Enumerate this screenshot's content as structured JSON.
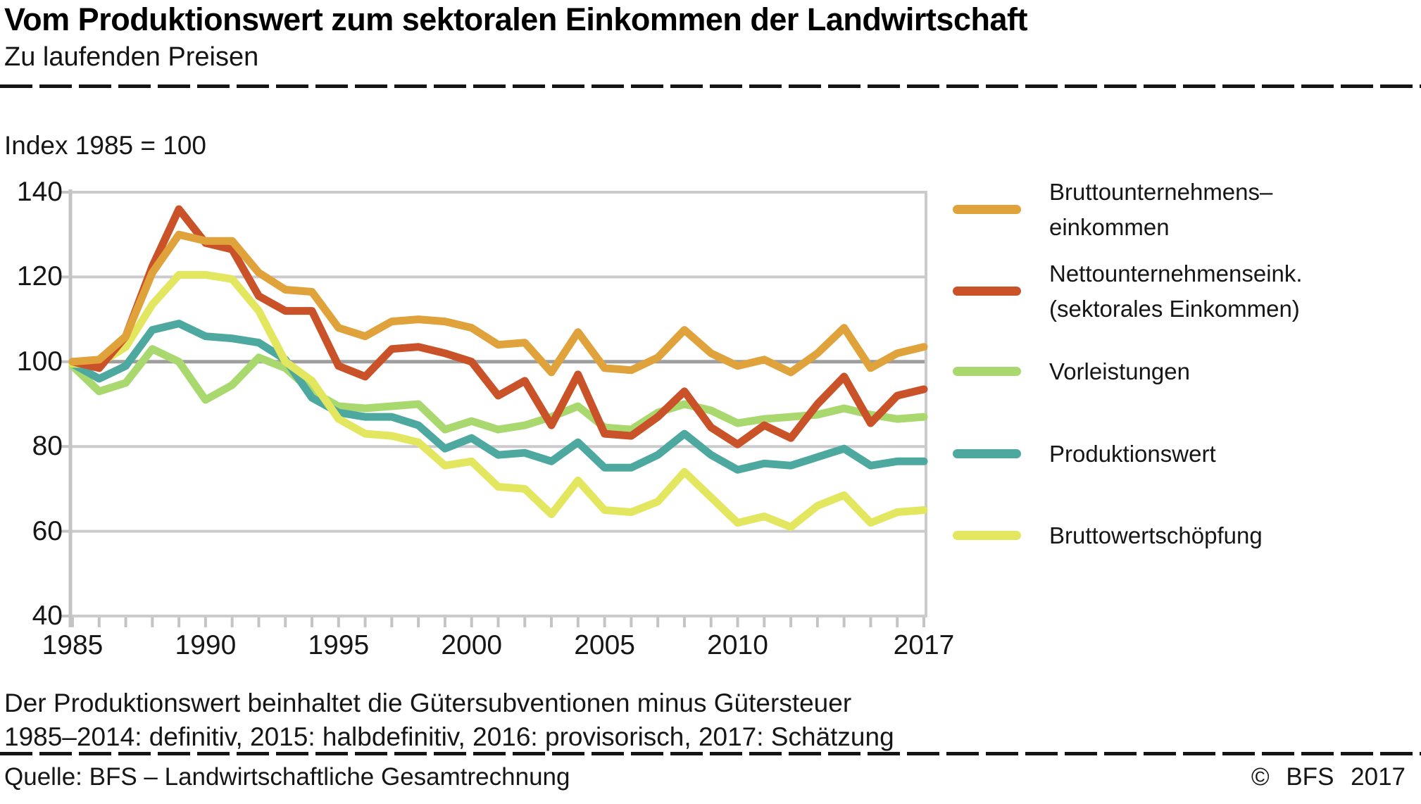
{
  "header": {
    "title": "Vom Produktionswert zum sektoralen Einkommen der Landwirtschaft",
    "subtitle": "Zu laufenden Preisen"
  },
  "chart": {
    "index_label": "Index 1985 = 100"
  },
  "footer": {
    "note1": "Der Produktionswert beinhaltet die Gütersubventionen minus Gütersteuer",
    "note2": "1985–2014: definitiv, 2015: halbdefinitiv, 2016: provisorisch, 2017: Schätzung",
    "source": "Quelle: BFS – Landwirtschaftliche Gesamtrechnung",
    "copyright": "© BFS 2017"
  },
  "colors": {
    "grid": "#CBCBCB",
    "grid_reference": "#9E9E9E",
    "axis": "#C4C4C4",
    "text": "#161616"
  },
  "chart_data": {
    "type": "line",
    "title": "Vom Produktionswert zum sektoralen Einkommen der Landwirtschaft",
    "subtitle": "Zu laufenden Preisen",
    "index_note": "Index 1985 = 100",
    "xlabel": "",
    "ylabel": "Index 1985 = 100",
    "ylim": [
      40,
      140
    ],
    "yticks": [
      140,
      120,
      100,
      80,
      60,
      40
    ],
    "reference_line": 100,
    "grid": true,
    "legend_position": "right",
    "x": [
      1985,
      1986,
      1987,
      1988,
      1989,
      1990,
      1991,
      1992,
      1993,
      1994,
      1995,
      1996,
      1997,
      1998,
      1999,
      2000,
      2001,
      2002,
      2003,
      2004,
      2005,
      2006,
      2007,
      2008,
      2009,
      2010,
      2011,
      2012,
      2013,
      2014,
      2015,
      2016,
      2017
    ],
    "x_tick_labels": [
      "1985",
      "1990",
      "1995",
      "2000",
      "2005",
      "2010",
      "2017"
    ],
    "x_tick_years": [
      1985,
      1990,
      1995,
      2000,
      2005,
      2010,
      2017
    ],
    "series": [
      {
        "key": "bruttounternehmenseinkommen",
        "name": "Bruttounternehmenseinkommen",
        "legend_lines": [
          "Bruttounternehmens–",
          "einkommen"
        ],
        "color": "#E0A23A",
        "values": [
          100,
          100.5,
          106,
          121,
          130,
          128.5,
          128.5,
          121,
          117,
          116.5,
          108,
          106,
          109.5,
          110,
          109.5,
          108,
          104,
          104.5,
          97.5,
          107,
          98.5,
          98,
          101,
          107.5,
          102,
          99,
          100.5,
          97.5,
          102,
          108,
          98.5,
          102,
          103.5
        ]
      },
      {
        "key": "nettounternehmenseinkommen",
        "name": "Nettounternehmenseink. (sektorales Einkommen)",
        "legend_lines": [
          "Nettounternehmenseink.",
          "(sektorales Einkommen)"
        ],
        "color": "#CA5229",
        "values": [
          100,
          98.5,
          106,
          122.5,
          136,
          128,
          126.5,
          115.5,
          112,
          112,
          99,
          96.5,
          103,
          103.5,
          102,
          100,
          92,
          95.5,
          85,
          97,
          83,
          82.5,
          87,
          93,
          84.5,
          80.5,
          85,
          82,
          90,
          96.5,
          85.5,
          92,
          93.5
        ]
      },
      {
        "key": "vorleistungen",
        "name": "Vorleistungen",
        "legend_lines": [
          "Vorleistungen"
        ],
        "color": "#A9D96E",
        "values": [
          99,
          93,
          95,
          103,
          100,
          91,
          94.5,
          101,
          98.5,
          93,
          89.5,
          89,
          89.5,
          90,
          84,
          86,
          84,
          85,
          87,
          89.5,
          84.5,
          84,
          88,
          90,
          88.5,
          85.5,
          86.5,
          87,
          87.5,
          89,
          87.5,
          86.5,
          87
        ]
      },
      {
        "key": "produktionswert",
        "name": "Produktionswert",
        "legend_lines": [
          "Produktionswert"
        ],
        "color": "#4DA9A0",
        "values": [
          99.5,
          96,
          99,
          107.5,
          109,
          106,
          105.5,
          104.5,
          100.5,
          91.5,
          88,
          87,
          87,
          85,
          79.5,
          82,
          78,
          78.5,
          76.5,
          81,
          75,
          75,
          78,
          83,
          78,
          74.5,
          76,
          75.5,
          77.5,
          79.5,
          75.5,
          76.5,
          76.5
        ]
      },
      {
        "key": "bruttowertschoepfung",
        "name": "Bruttowertschöpfung",
        "legend_lines": [
          "Bruttowertschöpfung"
        ],
        "color": "#E2E75F",
        "values": [
          99.5,
          99.5,
          103.5,
          113.5,
          120.5,
          120.5,
          119.5,
          112,
          100,
          95.5,
          86.5,
          83,
          82.5,
          81,
          75.5,
          76.5,
          70.5,
          70,
          64,
          72,
          65,
          64.5,
          67,
          74,
          68,
          62,
          63.5,
          61,
          66,
          68.5,
          62,
          64.5,
          65
        ]
      }
    ]
  }
}
